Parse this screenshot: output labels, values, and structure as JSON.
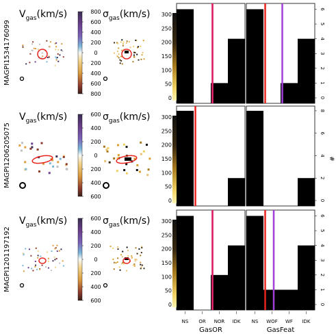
{
  "chart_data": {
    "type": "bar",
    "xlabels": [
      "GasOR",
      "GasFeat"
    ],
    "categories_left": [
      "NS",
      "OR",
      "NOR",
      "IDK"
    ],
    "categories_right": [
      "NS",
      "WOF",
      "WF",
      "IDK"
    ],
    "yright_label": "#",
    "vel_title": "V",
    "vel_sub": "gas",
    "vel_unit": "(km/s)",
    "sig_title": "σ",
    "sig_sub": "gas",
    "sig_unit": "(km/s)",
    "bar_values_ticks": [
      "0",
      "50",
      "100",
      "150",
      "200",
      "250",
      "300"
    ],
    "rows": [
      {
        "galaxy": "MAGPI1534176099",
        "vel_ticks": [
          "800",
          "600",
          "400",
          "200",
          "0",
          "200",
          "400",
          "600",
          "800"
        ],
        "sig_ticks": [
          "800",
          "600",
          "400",
          "200",
          "0",
          "200",
          "400",
          "600",
          "800"
        ],
        "count_ticks": [
          "0",
          "1",
          "2",
          "3",
          "4",
          "5",
          "6"
        ],
        "count_max": 6.3,
        "left_counts": [
          6,
          0,
          1,
          4
        ],
        "right_counts": [
          6,
          0,
          1,
          4
        ],
        "left_lines": [
          {
            "pos": 2.1,
            "color": "#a23fd8"
          },
          {
            "pos": 2.1,
            "color": "#e0245e"
          }
        ],
        "right_lines": [
          {
            "pos": 1.1,
            "color": "#e8231d"
          },
          {
            "pos": 2.1,
            "color": "#a23fd8"
          }
        ]
      },
      {
        "galaxy": "MAGPI1206205075",
        "vel_ticks": [
          "600",
          "400",
          "200",
          "0",
          "200",
          "400",
          "600"
        ],
        "sig_ticks": [
          "600",
          "400",
          "200",
          "0",
          "200",
          "400",
          "600"
        ],
        "count_ticks": [
          "0",
          "2",
          "4",
          "6",
          "8"
        ],
        "count_max": 8.3,
        "left_counts": [
          8,
          0,
          0,
          2
        ],
        "right_counts": [
          8,
          0,
          0,
          2
        ],
        "left_lines": [
          {
            "pos": 1.1,
            "color": "#e8231d"
          }
        ],
        "right_lines": []
      },
      {
        "galaxy": "MAGPI1201197192",
        "vel_ticks": [
          "600",
          "400",
          "200",
          "0",
          "200",
          "400",
          "600"
        ],
        "sig_ticks": [
          "600",
          "400",
          "200",
          "0",
          "200",
          "400",
          "600"
        ],
        "count_ticks": [
          "0",
          "1",
          "2",
          "3",
          "4",
          "5",
          "6"
        ],
        "count_max": 6.3,
        "left_counts": [
          6,
          0,
          2,
          4
        ],
        "right_counts": [
          6,
          1,
          1,
          4
        ],
        "left_lines": [
          {
            "pos": 2.1,
            "color": "#a23fd8"
          },
          {
            "pos": 2.1,
            "color": "#e0245e"
          }
        ],
        "right_lines": [
          {
            "pos": 1.1,
            "color": "#e8231d"
          },
          {
            "pos": 1.6,
            "color": "#a23fd8"
          }
        ]
      }
    ]
  }
}
